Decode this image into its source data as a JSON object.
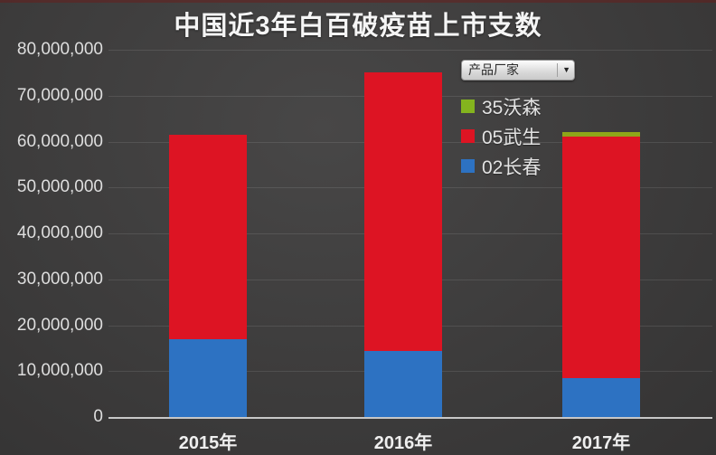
{
  "title": "中国近3年白百破疫苗上市支数",
  "legend": {
    "filter_label": "产品厂家",
    "dropdown_icon": "▼",
    "items": [
      {
        "label": "35沃森",
        "color": "#84b41e"
      },
      {
        "label": "05武生",
        "color": "#dd1423"
      },
      {
        "label": "02长春",
        "color": "#2d72c2"
      }
    ]
  },
  "chart_data": {
    "type": "bar",
    "stacked": true,
    "title": "中国近3年白百破疫苗上市支数",
    "categories": [
      "2015年",
      "2016年",
      "2017年"
    ],
    "series": [
      {
        "name": "02长春",
        "color": "#2d72c2",
        "values": [
          17000000,
          14300000,
          8500000
        ]
      },
      {
        "name": "05武生",
        "color": "#dd1423",
        "values": [
          44500000,
          60800000,
          52500000
        ]
      },
      {
        "name": "35沃森",
        "color": "#8fa619",
        "values": [
          0,
          0,
          1000000
        ]
      }
    ],
    "xlabel": "",
    "ylabel": "",
    "ylim": [
      0,
      80000000
    ],
    "ytick_step": 10000000,
    "ytick_labels": [
      "0",
      "10,000,000",
      "20,000,000",
      "30,000,000",
      "40,000,000",
      "50,000,000",
      "60,000,000",
      "70,000,000",
      "80,000,000"
    ],
    "grid": true,
    "legend_position": "upper right",
    "background": "#3e3d3d",
    "axis_line_color": "#c7c7c7"
  }
}
